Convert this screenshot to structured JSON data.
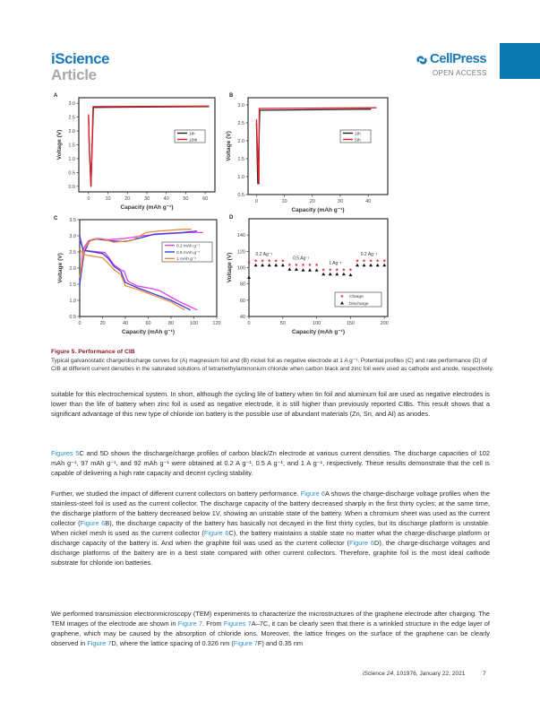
{
  "header": {
    "journal": "iScience",
    "section": "Article",
    "publisher": "CellPress",
    "access": "OPEN ACCESS",
    "accent_color": "#1a7ab8",
    "tab_color": "#0a78b0"
  },
  "chart_data": [
    {
      "panel": "A",
      "type": "line",
      "xlabel": "Capacity (mAh g⁻¹)",
      "ylabel": "Voltage (V)",
      "xlim": [
        -5,
        65
      ],
      "ylim": [
        -0.2,
        3.2
      ],
      "xticks": [
        0,
        10,
        20,
        30,
        40,
        50,
        60
      ],
      "yticks": [
        "0.0",
        "0.5",
        "1.0",
        "1.5",
        "2.0",
        "2.5",
        "3.0"
      ],
      "legend": "center-right",
      "series": [
        {
          "name": "1th",
          "color": "#222222",
          "points": [
            [
              0,
              2.55
            ],
            [
              0.4,
              1.45
            ],
            [
              1.2,
              0.0
            ],
            [
              2.5,
              2.85
            ],
            [
              62,
              2.88
            ]
          ]
        },
        {
          "name": "10th",
          "color": "#e0202a",
          "points": [
            [
              0,
              2.6
            ],
            [
              0.3,
              1.6
            ],
            [
              1.3,
              0.0
            ],
            [
              2.3,
              2.88
            ],
            [
              62,
              2.9
            ]
          ]
        }
      ]
    },
    {
      "panel": "B",
      "type": "line",
      "xlabel": "Capacity (mAh g⁻¹)",
      "ylabel": "Voltage (V)",
      "xlim": [
        -3,
        47
      ],
      "ylim": [
        0.5,
        3.2
      ],
      "xticks": [
        0,
        10,
        20,
        30,
        40
      ],
      "yticks": [
        "0.5",
        "1.0",
        "1.5",
        "2.0",
        "2.5",
        "3.0"
      ],
      "legend": "center-right",
      "series": [
        {
          "name": "1th",
          "color": "#222222",
          "points": [
            [
              0,
              2.5
            ],
            [
              0.3,
              1.4
            ],
            [
              0.5,
              0.8
            ],
            [
              1.2,
              2.85
            ],
            [
              41,
              2.88
            ]
          ]
        },
        {
          "name": "5th",
          "color": "#e0202a",
          "points": [
            [
              0,
              2.6
            ],
            [
              0.6,
              1.2
            ],
            [
              0.9,
              0.8
            ],
            [
              1.0,
              2.9
            ],
            [
              43,
              2.92
            ]
          ]
        }
      ]
    },
    {
      "panel": "C",
      "type": "line",
      "xlabel": "Capacity (mAh g⁻¹)",
      "ylabel": "Voltage (V)",
      "xlim": [
        0,
        120
      ],
      "ylim": [
        0.5,
        3.5
      ],
      "xticks": [
        0,
        20,
        40,
        60,
        80,
        100,
        120
      ],
      "yticks": [
        "0.5",
        "1.0",
        "1.5",
        "2.0",
        "2.5",
        "3.0",
        "3.5"
      ],
      "legend": "top-right",
      "series": [
        {
          "name": "0.2 mAh g⁻¹",
          "color": "#e040e8",
          "points": [
            [
              0,
              1.5
            ],
            [
              3,
              2.6
            ],
            [
              8,
              2.85
            ],
            [
              15,
              2.92
            ],
            [
              25,
              2.88
            ],
            [
              40,
              2.92
            ],
            [
              55,
              3.0
            ],
            [
              70,
              3.05
            ],
            [
              95,
              3.1
            ],
            [
              108,
              3.1
            ]
          ],
          "discharge": [
            [
              0,
              2.9
            ],
            [
              3,
              2.55
            ],
            [
              22,
              2.48
            ],
            [
              26,
              2.3
            ],
            [
              30,
              2.1
            ],
            [
              36,
              1.95
            ],
            [
              39,
              1.9
            ],
            [
              42,
              1.6
            ],
            [
              50,
              1.45
            ],
            [
              65,
              1.35
            ],
            [
              70,
              1.3
            ],
            [
              85,
              1.0
            ],
            [
              103,
              0.7
            ]
          ]
        },
        {
          "name": "0.5 mAh g⁻¹",
          "color": "#3040e0",
          "points": [
            [
              0,
              1.5
            ],
            [
              4,
              2.5
            ],
            [
              9,
              2.85
            ],
            [
              15,
              2.9
            ],
            [
              25,
              2.85
            ],
            [
              40,
              2.82
            ],
            [
              55,
              2.95
            ],
            [
              65,
              3.05
            ],
            [
              90,
              3.1
            ],
            [
              103,
              3.15
            ]
          ],
          "discharge": [
            [
              0,
              3.0
            ],
            [
              3,
              2.55
            ],
            [
              20,
              2.45
            ],
            [
              25,
              2.3
            ],
            [
              30,
              2.05
            ],
            [
              36,
              1.9
            ],
            [
              40,
              1.55
            ],
            [
              50,
              1.4
            ],
            [
              65,
              1.2
            ],
            [
              80,
              1.0
            ],
            [
              97,
              0.7
            ]
          ]
        },
        {
          "name": "1   mAh g⁻¹",
          "color": "#f08a3a",
          "points": [
            [
              0,
              1.7
            ],
            [
              4,
              2.6
            ],
            [
              10,
              2.88
            ],
            [
              18,
              2.92
            ],
            [
              30,
              2.8
            ],
            [
              45,
              2.85
            ],
            [
              58,
              3.1
            ],
            [
              70,
              3.15
            ],
            [
              90,
              3.2
            ],
            [
              98,
              3.2
            ]
          ],
          "discharge": [
            [
              0,
              2.6
            ],
            [
              3,
              2.42
            ],
            [
              20,
              2.32
            ],
            [
              25,
              2.15
            ],
            [
              30,
              1.95
            ],
            [
              36,
              1.8
            ],
            [
              40,
              1.45
            ],
            [
              50,
              1.35
            ],
            [
              65,
              1.15
            ],
            [
              80,
              0.95
            ],
            [
              92,
              0.7
            ]
          ]
        }
      ]
    },
    {
      "panel": "D",
      "type": "scatter",
      "xlabel": "Capacity (mAh g⁻¹)",
      "ylabel": "Voltage (V)",
      "xlim": [
        0,
        205
      ],
      "ylim": [
        40,
        160
      ],
      "xticks": [
        0,
        50,
        100,
        150,
        200
      ],
      "yticks": [
        "40",
        "60",
        "80",
        "100",
        "120",
        "140"
      ],
      "legend": "bottom-right",
      "annotations": [
        "0.2 Ag⁻¹",
        "0.5 Ag⁻¹",
        "1 Ag⁻¹",
        "0.2 Ag⁻¹"
      ],
      "series": [
        {
          "name": "Charge",
          "color": "#e0202a",
          "marker": "star",
          "x": [
            0,
            10,
            20,
            30,
            40,
            50,
            60,
            70,
            80,
            90,
            100,
            110,
            120,
            130,
            140,
            150,
            160,
            170,
            180,
            190,
            200
          ],
          "y": [
            107,
            109,
            109,
            109,
            109,
            109,
            104,
            104,
            104,
            104,
            104,
            98,
            98,
            98,
            98,
            98,
            109,
            109,
            109,
            109,
            109
          ]
        },
        {
          "name": "Discharge",
          "color": "#111111",
          "marker": "triangle",
          "x": [
            0,
            10,
            20,
            30,
            40,
            50,
            60,
            70,
            80,
            90,
            100,
            110,
            120,
            130,
            140,
            150,
            160,
            170,
            180,
            190,
            200
          ],
          "y": [
            88,
            103,
            103,
            103,
            103,
            103,
            98,
            98,
            97,
            97,
            97,
            92,
            92,
            92,
            92,
            91,
            103,
            103,
            103,
            103,
            103
          ]
        }
      ]
    }
  ],
  "caption": {
    "title": "Figure 5. Performance of CIB",
    "text": "Typical galvanostatic charge/discharge curves for (A) magnesium foil and (B) nickel foil as negative electrode at 1 A g⁻¹. Potential profiles (C) and rate performance (D) of CIB at different current densities in the saturated solutions of tetramethylammonium chloride when carbon black and zinc foil were used as cathode and anode, respectively."
  },
  "paragraphs": [
    [
      {
        "t": "suitable for this electrochemical system. In short, although the cycling life of battery when tin foil and aluminum foil are used as negative electrodes is lower than the life of battery when zinc foil is used as negative electrode, it is still higher than previously reported CIBs. This result shows that a significant advantage of this new type of chloride ion battery is the possible use of abundant materials (Zn, Sn, and Al) as anodes."
      }
    ],
    [
      {
        "link": "Figures 5"
      },
      {
        "t": "C and 5D shows the discharge/charge profiles of carbon black/Zn electrode at various current densities. The discharge capacities of 102 mAh g⁻¹, 97 mAh g⁻¹, and 92 mAh g⁻¹ were obtained at 0.2 A g⁻¹, 0.5 A g⁻¹, and 1 A g⁻¹, respectively. These results demonstrate that the cell is capable of delivering a high rate capacity and decent cycling stability."
      }
    ],
    [
      {
        "t": "Further, we studied the impact of different current collectors on battery performance. "
      },
      {
        "link": "Figure 6"
      },
      {
        "t": "A shows the charge-discharge voltage profiles when the stainless-steel foil is used as the current collector. The discharge capacity of the battery decreased sharply in the first thirty cycles; at the same time, the discharge platform of the battery decreased below 1V, showing an unstable state of the battery. When a chromium sheet was used as the current collector ("
      },
      {
        "link": "Figure 6"
      },
      {
        "t": "B), the discharge capacity of the battery has basically not decayed in the first thirty cycles, but its discharge platform is unstable. When nickel mesh is used as the current collector ("
      },
      {
        "link": "Figure 6"
      },
      {
        "t": "C), the battery maintains a stable state no matter what the charge-discharge platform or discharge capacity of the battery is. And when the graphite foil was used as the current collector ("
      },
      {
        "link": "Figure 6"
      },
      {
        "t": "D), the charge-discharge voltages and discharge platforms of the battery are in a best state compared with other current collectors. Therefore, graphite foil is the most ideal cathode substrate for chloride ion batteries."
      }
    ],
    [
      {
        "t": "We performed transmission electronmicroscopy (TEM) experiments to characterize the microstructures of the graphene electrode after charging. The TEM images of the electrode are shown in "
      },
      {
        "link": "Figure 7"
      },
      {
        "t": ". From "
      },
      {
        "link": "Figures 7"
      },
      {
        "t": "A–7C, it can be clearly seen that there is a wrinkled structure in the edge layer of graphene, which may be caused by the absorption of chloride ions. Moreover, the lattice fringes on the surface of the graphene can be clearly observed in "
      },
      {
        "link": "Figure 7"
      },
      {
        "t": "D, where the lattice spacing of 0.326 nm ("
      },
      {
        "link": "Figure 7"
      },
      {
        "t": "F) and 0.35 nm"
      }
    ]
  ],
  "footer": {
    "journal": "iScience",
    "volume": "24",
    "citation": ", 101976, January 22, 2021",
    "page": "7"
  }
}
